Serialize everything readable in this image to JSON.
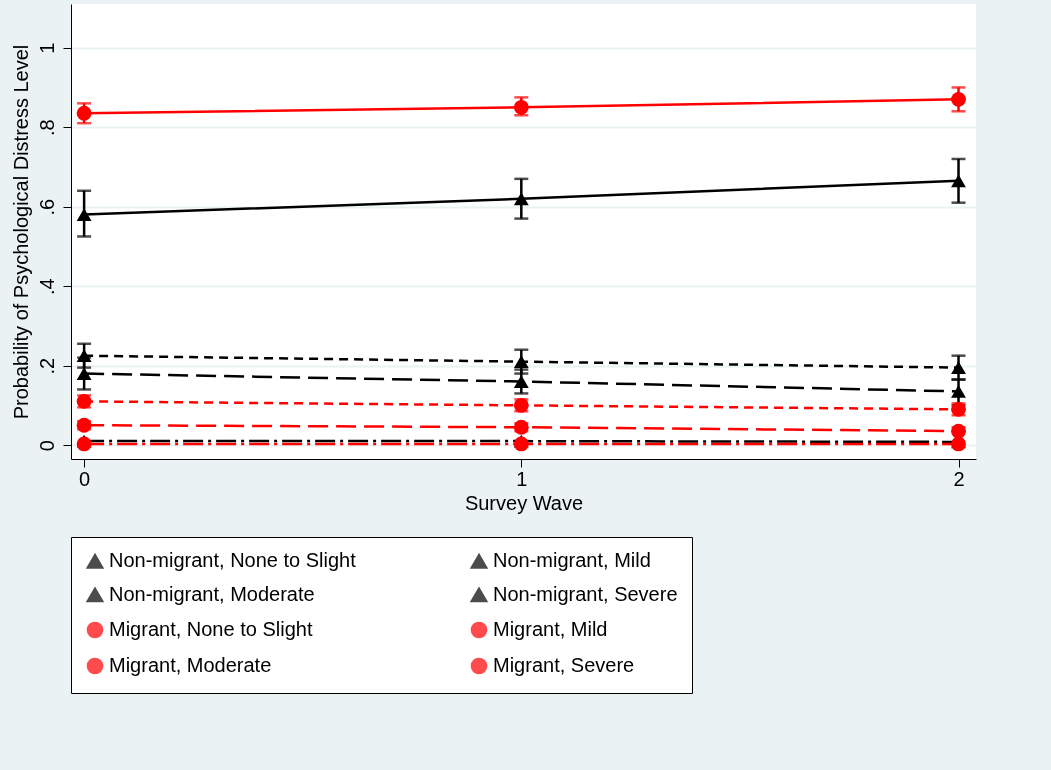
{
  "chart_data": {
    "type": "line",
    "xlabel": "Survey Wave",
    "ylabel": "Probability of Psychological Distress Level",
    "x": [
      0,
      1,
      2
    ],
    "xlim": [
      -0.03,
      2.04
    ],
    "xticks": [
      0,
      1,
      2
    ],
    "ylim": [
      -0.035,
      1.11
    ],
    "yticks": [
      0,
      {
        "value": 0.2,
        "label": ".2"
      },
      {
        "value": 0.4,
        "label": ".4"
      },
      {
        "value": 0.6,
        "label": ".6"
      },
      {
        "value": 0.8,
        "label": ".8"
      },
      1
    ],
    "grid": "y",
    "legend": "bottom",
    "series": [
      {
        "name": "Non-migrant, None to Slight",
        "color": "#000000",
        "marker": "triangle",
        "line_style": "solid",
        "values": [
          0.58,
          0.62,
          0.665
        ],
        "errors": [
          [
            0.525,
            0.64
          ],
          [
            0.57,
            0.67
          ],
          [
            0.61,
            0.72
          ]
        ]
      },
      {
        "name": "Non-migrant, Mild",
        "color": "#000000",
        "marker": "triangle",
        "line_style": "dashed",
        "values": [
          0.225,
          0.21,
          0.195
        ],
        "errors": [
          [
            0.195,
            0.255
          ],
          [
            0.18,
            0.24
          ],
          [
            0.165,
            0.225
          ]
        ]
      },
      {
        "name": "Non-migrant, Moderate",
        "color": "#000000",
        "marker": "triangle",
        "line_style": "longdash",
        "values": [
          0.18,
          0.16,
          0.135
        ],
        "errors": [
          [
            0.14,
            0.22
          ],
          [
            0.13,
            0.19
          ],
          [
            0.1,
            0.165
          ]
        ]
      },
      {
        "name": "Non-migrant, Severe",
        "color": "#000000",
        "marker": "triangle",
        "line_style": "dashdot",
        "values": [
          0.01,
          0.01,
          0.008
        ]
      },
      {
        "name": "Migrant, None to Slight",
        "color": "#ff0000",
        "marker": "circle",
        "line_style": "solid",
        "values": [
          0.835,
          0.85,
          0.87
        ],
        "errors": [
          [
            0.81,
            0.86
          ],
          [
            0.83,
            0.875
          ],
          [
            0.84,
            0.9
          ]
        ]
      },
      {
        "name": "Migrant, Mild",
        "color": "#ff0000",
        "marker": "circle",
        "line_style": "dashed",
        "values": [
          0.11,
          0.1,
          0.09
        ],
        "errors": [
          [
            0.095,
            0.125
          ],
          [
            0.085,
            0.115
          ],
          [
            0.075,
            0.105
          ]
        ]
      },
      {
        "name": "Migrant, Moderate",
        "color": "#ff0000",
        "marker": "circle",
        "line_style": "longdash",
        "values": [
          0.05,
          0.045,
          0.035
        ],
        "errors": [
          [
            0.04,
            0.06
          ],
          [
            0.035,
            0.055
          ],
          [
            0.035,
            0.045
          ]
        ]
      },
      {
        "name": "Migrant, Severe",
        "color": "#ff0000",
        "marker": "circle",
        "line_style": "dashdot",
        "values": [
          0.003,
          0.003,
          0.003
        ]
      }
    ]
  }
}
